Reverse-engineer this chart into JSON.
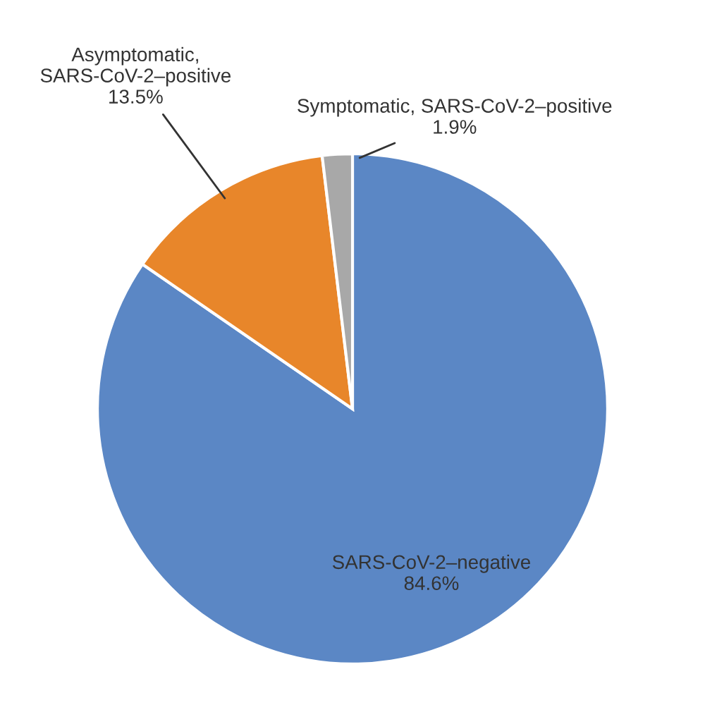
{
  "chart_data": {
    "type": "pie",
    "categories": [
      "SARS-CoV-2–negative",
      "Asymptomatic,\nSARS-CoV-2–positive",
      "Symptomatic, SARS-CoV-2–positive"
    ],
    "values": [
      84.6,
      13.5,
      1.9
    ],
    "value_labels": [
      "84.6%",
      "13.5%",
      "1.9%"
    ],
    "colors": [
      "#5b87c5",
      "#e8862a",
      "#a8a8a8"
    ]
  }
}
